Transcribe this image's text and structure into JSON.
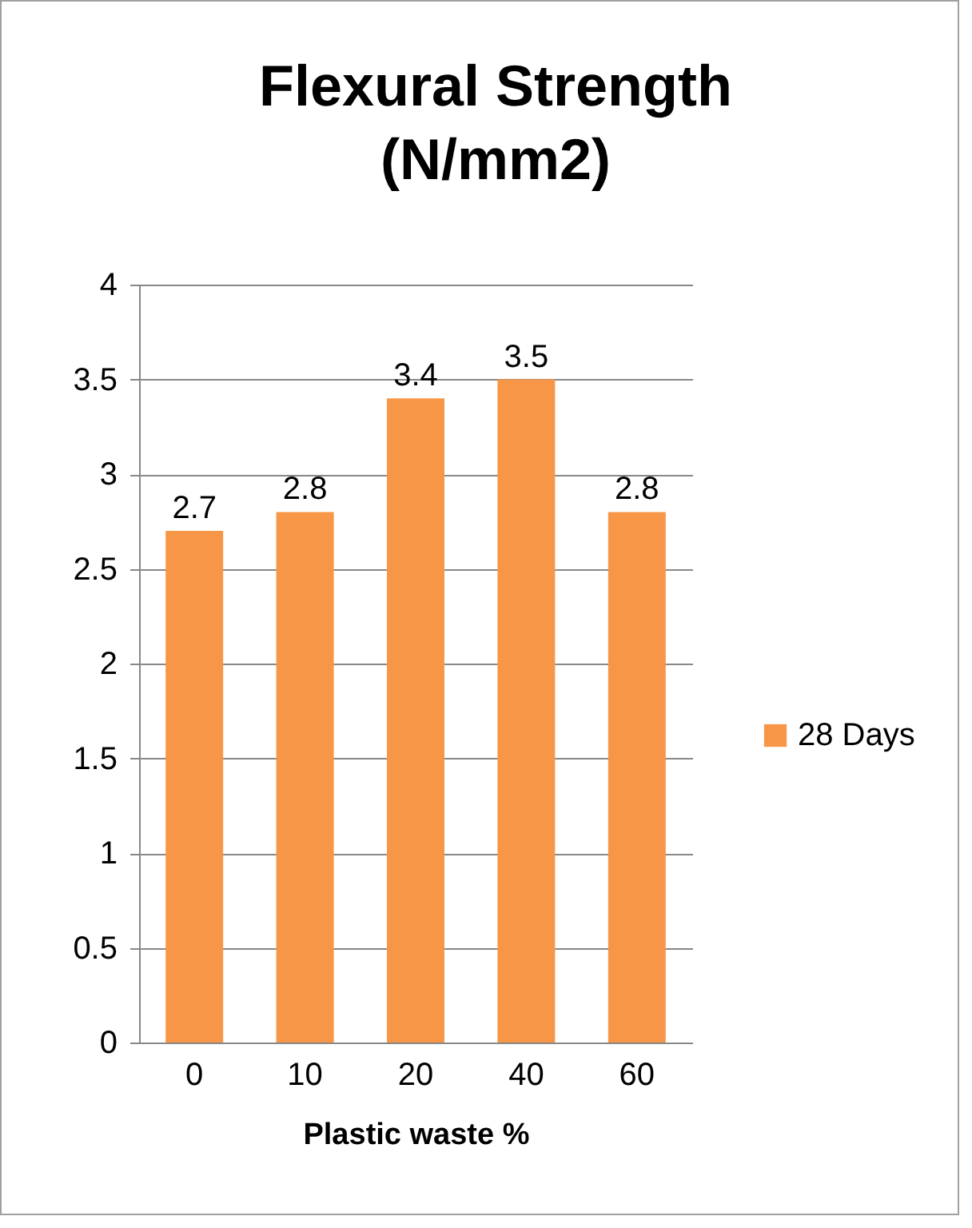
{
  "chart_data": {
    "type": "bar",
    "title": "Flexural Strength (N/mm2)",
    "xlabel": "Plastic waste %",
    "categories": [
      "0",
      "10",
      "20",
      "40",
      "60"
    ],
    "series": [
      {
        "name": "28 Days",
        "color": "#f79646",
        "values": [
          2.7,
          2.8,
          3.4,
          3.5,
          2.8
        ]
      }
    ],
    "ylim": [
      0,
      4
    ],
    "yticks": [
      0,
      0.5,
      1,
      1.5,
      2,
      2.5,
      3,
      3.5,
      4
    ],
    "grid": "y",
    "legend": "right",
    "data_labels": true
  }
}
